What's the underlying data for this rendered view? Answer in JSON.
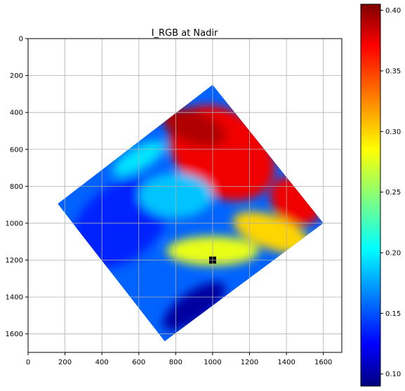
{
  "chart_data": {
    "type": "heatmap",
    "title": "I_RGB at Nadir",
    "xlabel": "",
    "ylabel": "",
    "xlim": [
      0,
      1700
    ],
    "ylim": [
      1700,
      0
    ],
    "y_inverted": true,
    "x_ticks": [
      "0",
      "200",
      "400",
      "600",
      "800",
      "1000",
      "1200",
      "1400",
      "1600"
    ],
    "y_ticks": [
      "0",
      "200",
      "400",
      "600",
      "800",
      "1000",
      "1200",
      "1400",
      "1600"
    ],
    "grid": true,
    "colormap": "jet",
    "colorbar": {
      "range": [
        0.09,
        0.405
      ],
      "ticks": [
        "0.10",
        "0.15",
        "0.20",
        "0.25",
        "0.30",
        "0.35",
        "0.40"
      ]
    },
    "footprint_corners": [
      [
        1000,
        250
      ],
      [
        1600,
        1000
      ],
      [
        740,
        1640
      ],
      [
        160,
        895
      ]
    ],
    "marker": {
      "x": 1000,
      "y": 1200,
      "color": "#000000"
    },
    "regions": [
      {
        "x": 1050,
        "y": 620,
        "rx": 310,
        "ry": 230,
        "rot": 35,
        "value": 0.37
      },
      {
        "x": 900,
        "y": 480,
        "rx": 180,
        "ry": 90,
        "rot": 20,
        "value": 0.39
      },
      {
        "x": 1450,
        "y": 880,
        "rx": 150,
        "ry": 120,
        "rot": 40,
        "value": 0.37
      },
      {
        "x": 1320,
        "y": 1050,
        "rx": 220,
        "ry": 90,
        "rot": 20,
        "value": 0.3
      },
      {
        "x": 1000,
        "y": 1150,
        "rx": 250,
        "ry": 80,
        "rot": 0,
        "value": 0.28
      },
      {
        "x": 600,
        "y": 650,
        "rx": 160,
        "ry": 60,
        "rot": -30,
        "value": 0.2
      },
      {
        "x": 500,
        "y": 1000,
        "rx": 300,
        "ry": 200,
        "rot": -40,
        "value": 0.14
      },
      {
        "x": 900,
        "y": 1450,
        "rx": 200,
        "ry": 80,
        "rot": -35,
        "value": 0.1
      },
      {
        "x": 800,
        "y": 850,
        "rx": 200,
        "ry": 120,
        "rot": 0,
        "value": 0.19
      }
    ]
  }
}
